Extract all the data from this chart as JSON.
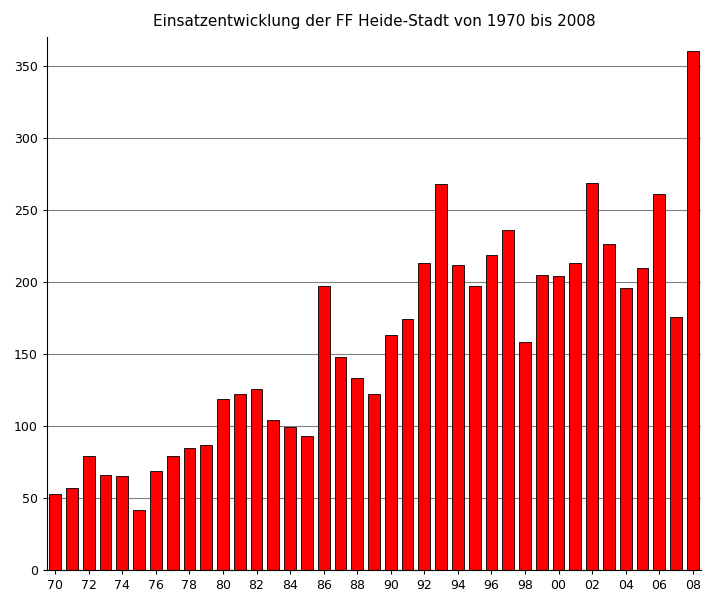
{
  "title": "Einsatzentwicklung der FF Heide-Stadt von 1970 bis 2008",
  "values": [
    53,
    57,
    79,
    66,
    65,
    42,
    69,
    79,
    85,
    87,
    119,
    122,
    126,
    104,
    99,
    93,
    197,
    148,
    133,
    122,
    163,
    174,
    213,
    268,
    212,
    197,
    219,
    236,
    158,
    205,
    204,
    213,
    269,
    226,
    196,
    210,
    261,
    176,
    360
  ],
  "tick_labels": [
    "70",
    "72",
    "74",
    "76",
    "78",
    "80",
    "82",
    "84",
    "86",
    "88",
    "90",
    "92",
    "94",
    "96",
    "98",
    "00",
    "02",
    "04",
    "06",
    "08"
  ],
  "bar_color": "#FF0000",
  "edge_color": "#000000",
  "ylim": [
    0,
    370
  ],
  "yticks": [
    0,
    50,
    100,
    150,
    200,
    250,
    300,
    350
  ],
  "grid_color": "#808080",
  "bg_color": "#FFFFFF",
  "title_fontsize": 11,
  "tick_label_fontsize": 9,
  "bar_width": 0.7,
  "figwidth": 7.16,
  "figheight": 6.06,
  "dpi": 100
}
